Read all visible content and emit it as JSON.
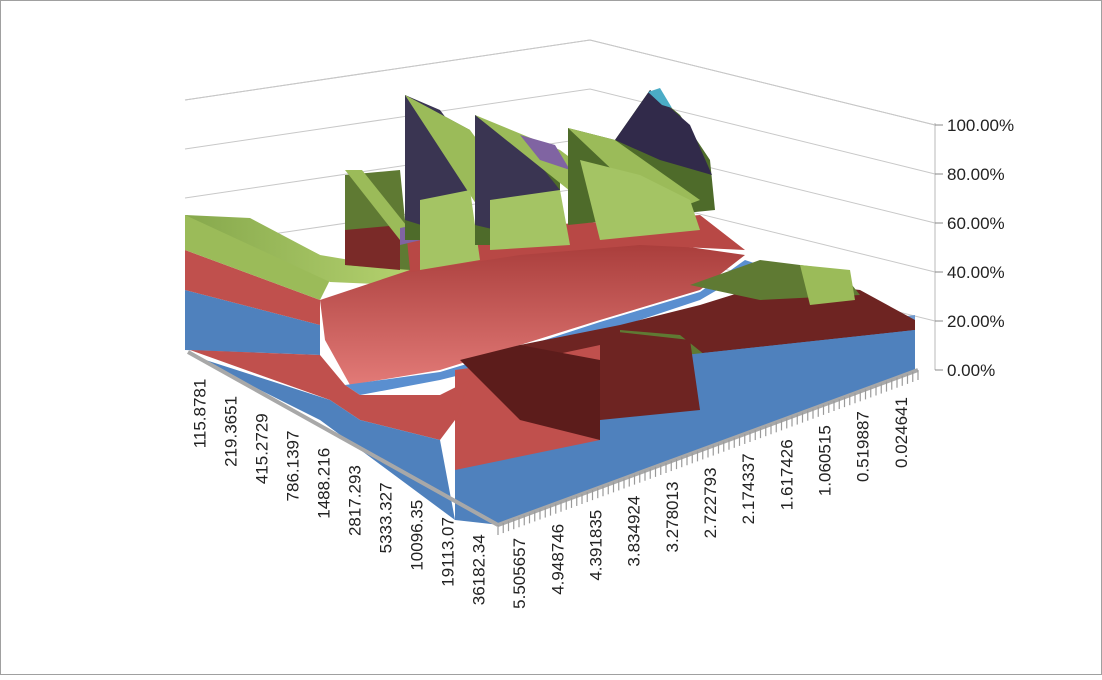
{
  "chart_data": {
    "type": "area",
    "subtype": "3d-surface-100-percent-stacked",
    "title": "",
    "x_categories": [
      "115.8781",
      "219.3651",
      "415.2729",
      "786.1397",
      "1488.216",
      "2817.293",
      "5333.327",
      "10096.35",
      "19113.07",
      "36182.34"
    ],
    "depth_categories": [
      "5.505657",
      "4.948746",
      "4.391835",
      "3.834924",
      "3.278013",
      "2.722793",
      "2.174337",
      "1.617426",
      "1.060515",
      "0.519887",
      "0.024641"
    ],
    "z_axis": {
      "ticks": [
        "0.00%",
        "20.00%",
        "40.00%",
        "60.00%",
        "80.00%",
        "100.00%"
      ],
      "range": [
        0,
        100
      ]
    },
    "series": [
      {
        "color": "#4f81bd"
      },
      {
        "color": "#c0504d"
      },
      {
        "color": "#9bbb59"
      },
      {
        "color": "#8064a2"
      },
      {
        "color": "#4bacc6"
      }
    ],
    "grid": true,
    "legend": "none"
  }
}
